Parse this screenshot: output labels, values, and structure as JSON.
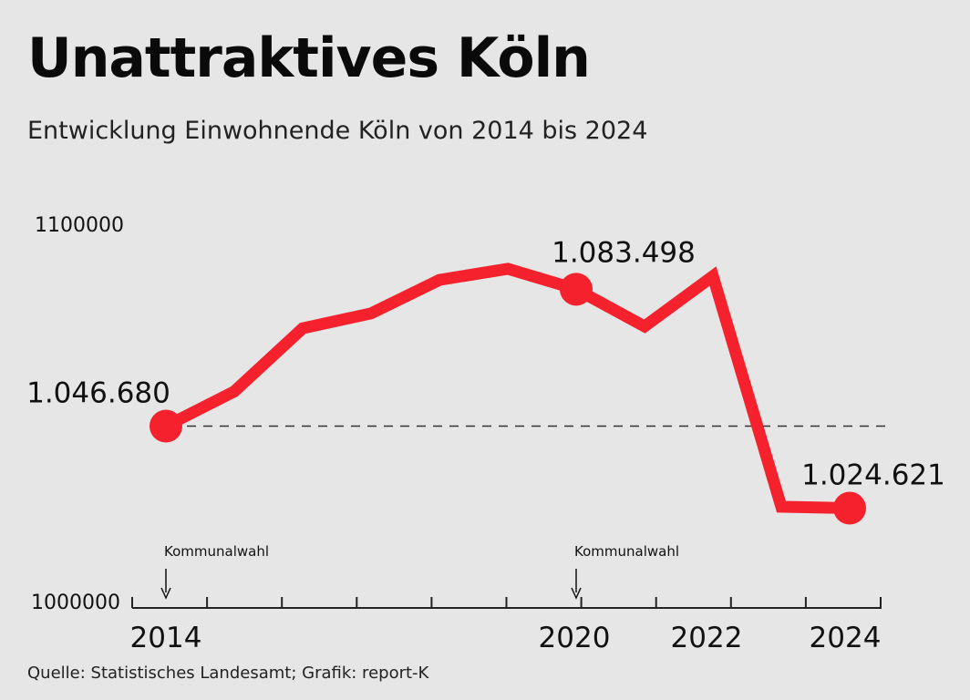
{
  "title": "Unattraktives Köln",
  "subtitle": "Entwicklung Einwohnende Köln von 2014 bis 2024",
  "source": "Quelle: Statistisches Landesamt; Grafik: report-K",
  "colors": {
    "line": "#f5222d",
    "background": "#e6e6e6",
    "text": "#111111"
  },
  "chart_data": {
    "type": "line",
    "title": "Unattraktives Köln",
    "subtitle": "Entwicklung Einwohnende Köln von 2014 bis 2024",
    "xlabel": "",
    "ylabel": "",
    "ylim": [
      1000000,
      1100000
    ],
    "y_tick_labels": [
      "1000000",
      "1100000"
    ],
    "x_tick_labels": [
      "2014",
      "2020",
      "2022",
      "2024"
    ],
    "x_tick_values": [
      2014,
      2020,
      2022,
      2024
    ],
    "x": [
      2014,
      2015,
      2016,
      2017,
      2018,
      2019,
      2020,
      2021,
      2022,
      2023,
      2024
    ],
    "series": [
      {
        "values": [
          1046680,
          1056000,
          1073000,
          1077000,
          1086000,
          1089000,
          1083498,
          1073500,
          1087000,
          1025000,
          1024621
        ]
      }
    ],
    "annotations": [
      {
        "x": 2014,
        "value": 1046680,
        "label": "1.046.680",
        "dot": true
      },
      {
        "x": 2020,
        "value": 1083498,
        "label": "1.083.498",
        "dot": true
      },
      {
        "x": 2024,
        "value": 1024621,
        "label": "1.024.621",
        "dot": true
      }
    ],
    "reference_line": {
      "value": 1046680,
      "style": "dashed"
    },
    "events": [
      {
        "x": 2014,
        "label": "Kommunalwahl"
      },
      {
        "x": 2020,
        "label": "Kommunalwahl"
      }
    ],
    "grid": false,
    "legend": "none"
  }
}
